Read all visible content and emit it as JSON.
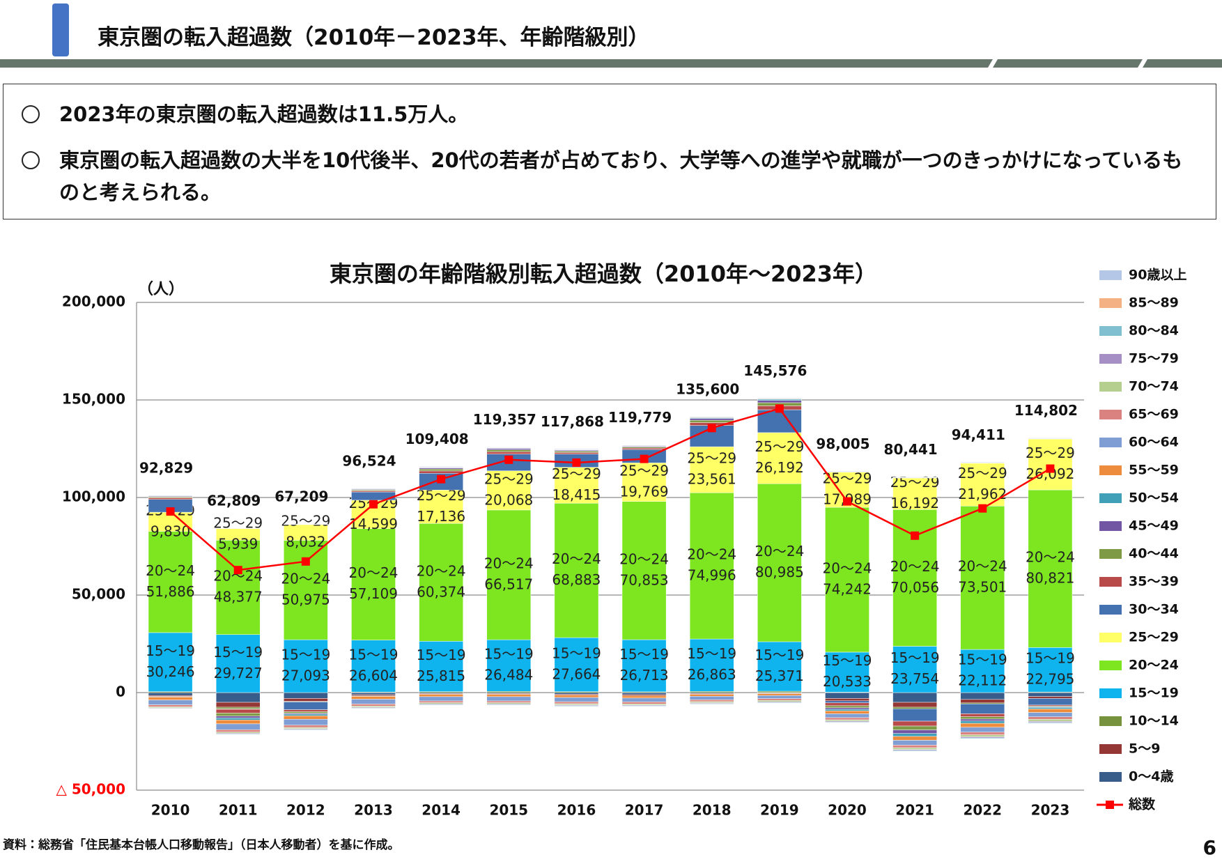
{
  "header": {
    "title": "東京圏の転入超過数（2010年－2023年、年齢階級別）"
  },
  "summary": {
    "bullets": [
      "2023年の東京圏の転入超過数は11.5万人。",
      "東京圏の転入超過数の大半を10代後半、20代の若者が占めており、大学等への進学や就職が一つのきっかけになっているものと考えられる。"
    ]
  },
  "source": "資料：総務省「住民基本台帳人口移動報告」（日本人移動者）を基に作成。",
  "page_number": "6",
  "chart_data": {
    "type": "bar",
    "stacked": true,
    "title": "東京圏の年齢階級別転入超過数（2010年～2023年）",
    "y_axis_label": "（人）",
    "categories": [
      "2010",
      "2011",
      "2012",
      "2013",
      "2014",
      "2015",
      "2016",
      "2017",
      "2018",
      "2019",
      "2020",
      "2021",
      "2022",
      "2023"
    ],
    "ylim": [
      -50000,
      200000
    ],
    "yticks": [
      {
        "value": -50000,
        "label": "△ 50,000"
      },
      0,
      {
        "value": 50000,
        "label": "50,000"
      },
      {
        "value": 100000,
        "label": "100,000"
      },
      {
        "value": 150000,
        "label": "150,000"
      },
      {
        "value": 200000,
        "label": "200,000"
      }
    ],
    "negative_tick_color": "#ff0000",
    "grid": true,
    "legend": "right",
    "series": [
      {
        "name": "0～4歳",
        "color": "#385d8a",
        "values": [
          -1500,
          -5000,
          -3000,
          -1000,
          -500,
          -500,
          -800,
          -1000,
          -500,
          -300,
          -3000,
          -5000,
          -3500,
          -2000
        ]
      },
      {
        "name": "5～9",
        "color": "#953735",
        "values": [
          -500,
          -2500,
          -1500,
          -600,
          -400,
          -400,
          -500,
          -600,
          -400,
          -300,
          -1200,
          -2500,
          -1800,
          -1000
        ]
      },
      {
        "name": "10～14",
        "color": "#77923c",
        "values": [
          500,
          -800,
          -300,
          300,
          500,
          600,
          500,
          400,
          600,
          700,
          200,
          -800,
          -500,
          300
        ]
      },
      {
        "name": "15～19",
        "color": "#0fb4ee",
        "values": [
          30246,
          29727,
          27093,
          26604,
          25815,
          26484,
          27664,
          26713,
          26863,
          25371,
          20533,
          23754,
          22112,
          22795
        ],
        "value_labels": [
          "30,246",
          "29,727",
          "27,093",
          "26,604",
          "25,815",
          "26,484",
          "27,664",
          "26,713",
          "26,863",
          "25,371",
          "20,533",
          "23,754",
          "22,112",
          "22,795"
        ]
      },
      {
        "name": "20～24",
        "color": "#7ee621",
        "values": [
          51886,
          48377,
          50975,
          57109,
          60374,
          66517,
          68883,
          70853,
          74996,
          80985,
          74242,
          70056,
          73501,
          80821
        ],
        "value_labels": [
          "51,886",
          "48,377",
          "50,975",
          "57,109",
          "60,374",
          "66,517",
          "68,883",
          "70,853",
          "74,996",
          "80,985",
          "74,242",
          "70,056",
          "73,501",
          "80,821"
        ]
      },
      {
        "name": "25～29",
        "color": "#ffff66",
        "values": [
          9830,
          5939,
          8032,
          14599,
          17136,
          20068,
          18415,
          19769,
          23561,
          26192,
          17989,
          16192,
          21962,
          26092
        ],
        "value_labels": [
          "9,830",
          "5,939",
          "8,032",
          "14,599",
          "17,136",
          "20,068",
          "18,415",
          "19,769",
          "23,561",
          "26,192",
          "17,989",
          "16,192",
          "21,962",
          "26,092"
        ]
      },
      {
        "name": "30～34",
        "color": "#4472b0",
        "values": [
          6567,
          -234,
          -3991,
          4212,
          8583,
          8588,
          6806,
          6844,
          10880,
          11728,
          -1059,
          -6357,
          -5064,
          -3406
        ]
      },
      {
        "name": "35～39",
        "color": "#b84a4a",
        "values": [
          800,
          -2000,
          -1000,
          600,
          1200,
          1200,
          800,
          700,
          1500,
          2000,
          -1500,
          -2500,
          -1500,
          -500
        ]
      },
      {
        "name": "40～44",
        "color": "#7f9a44",
        "values": [
          500,
          -1500,
          -800,
          500,
          1000,
          1000,
          700,
          600,
          1200,
          1600,
          -1000,
          -2000,
          -1200,
          -400
        ]
      },
      {
        "name": "45～49",
        "color": "#7356a3",
        "values": [
          300,
          -1000,
          -500,
          300,
          600,
          700,
          500,
          400,
          900,
          1200,
          -800,
          -1800,
          -1000,
          -300
        ]
      },
      {
        "name": "50～54",
        "color": "#3fa0b8",
        "values": [
          -300,
          -1000,
          -800,
          -300,
          200,
          200,
          100,
          100,
          400,
          600,
          -800,
          -1500,
          -1200,
          -800
        ]
      },
      {
        "name": "55～59",
        "color": "#ed8c3c",
        "values": [
          -1500,
          -2000,
          -1800,
          -1500,
          -1200,
          -1200,
          -1200,
          -1200,
          -1000,
          -900,
          -1500,
          -2000,
          -2000,
          -1800
        ]
      },
      {
        "name": "60～64",
        "color": "#7f9fd4",
        "values": [
          -2500,
          -3000,
          -3000,
          -2500,
          -2200,
          -2200,
          -2200,
          -2000,
          -1800,
          -1600,
          -2000,
          -2500,
          -2500,
          -2200
        ]
      },
      {
        "name": "65～69",
        "color": "#d9827f",
        "values": [
          -1000,
          -1200,
          -1200,
          -1000,
          -900,
          -900,
          -1000,
          -1000,
          -900,
          -900,
          -1100,
          -1300,
          -1400,
          -1300
        ]
      },
      {
        "name": "70～74",
        "color": "#b5cf8f",
        "values": [
          -500,
          -600,
          -600,
          -600,
          -600,
          -600,
          -600,
          -600,
          -600,
          -700,
          -700,
          -900,
          -1000,
          -1000
        ]
      },
      {
        "name": "75～79",
        "color": "#a68fc4",
        "values": [
          -300,
          -400,
          -400,
          -400,
          -400,
          -400,
          -400,
          -400,
          -400,
          -400,
          -500,
          -500,
          -600,
          -600
        ]
      },
      {
        "name": "80～84",
        "color": "#7fbfcf",
        "values": [
          -200,
          -300,
          -300,
          -300,
          -300,
          -300,
          -300,
          -300,
          -300,
          -300,
          -300,
          -400,
          -400,
          -400
        ]
      },
      {
        "name": "85～89",
        "color": "#f4b183",
        "values": [
          200,
          100,
          100,
          200,
          200,
          200,
          200,
          200,
          300,
          300,
          200,
          200,
          200,
          200
        ]
      },
      {
        "name": "90歳以上",
        "color": "#b4c7e7",
        "values": [
          300,
          200,
          200,
          300,
          300,
          300,
          300,
          300,
          300,
          300,
          300,
          300,
          300,
          300
        ]
      },
      {
        "name": "総数",
        "color": "#ff0000",
        "type": "line",
        "values": [
          92829,
          62809,
          67209,
          96524,
          109408,
          119357,
          117868,
          119779,
          135600,
          145576,
          98005,
          80441,
          94411,
          114802
        ],
        "value_labels": [
          "92,829",
          "62,809",
          "67,209",
          "96,524",
          "109,408",
          "119,357",
          "117,868",
          "119,779",
          "135,600",
          "145,576",
          "98,005",
          "80,441",
          "94,411",
          "114,802"
        ]
      }
    ]
  }
}
